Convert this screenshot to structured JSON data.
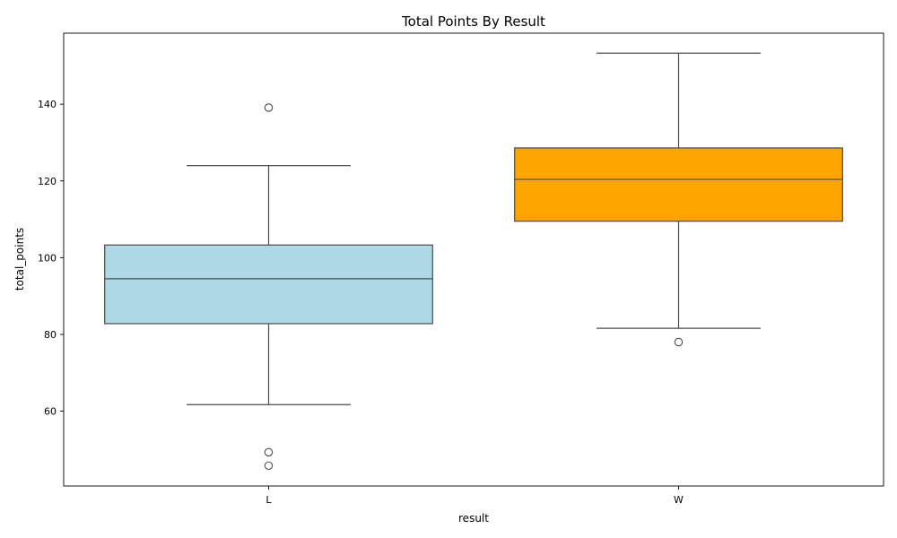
{
  "chart_data": {
    "type": "box",
    "title": "Total Points By Result",
    "xlabel": "result",
    "ylabel": "total_points",
    "categories": [
      "L",
      "W"
    ],
    "ylim": [
      40.5,
      158.5
    ],
    "yticks": [
      60,
      80,
      100,
      120,
      140
    ],
    "grid": false,
    "legend": "none",
    "boxes": [
      {
        "category": "L",
        "color": "#add8e6",
        "whisker_low": 61.7,
        "q1": 82.8,
        "median": 94.5,
        "q3": 103.3,
        "whisker_high": 124.0,
        "outliers": [
          139.1,
          49.3,
          45.8
        ]
      },
      {
        "category": "W",
        "color": "#ffa500",
        "whisker_low": 81.6,
        "q1": 109.5,
        "median": 120.4,
        "q3": 128.6,
        "whisker_high": 153.3,
        "outliers": [
          78.0
        ]
      }
    ]
  }
}
